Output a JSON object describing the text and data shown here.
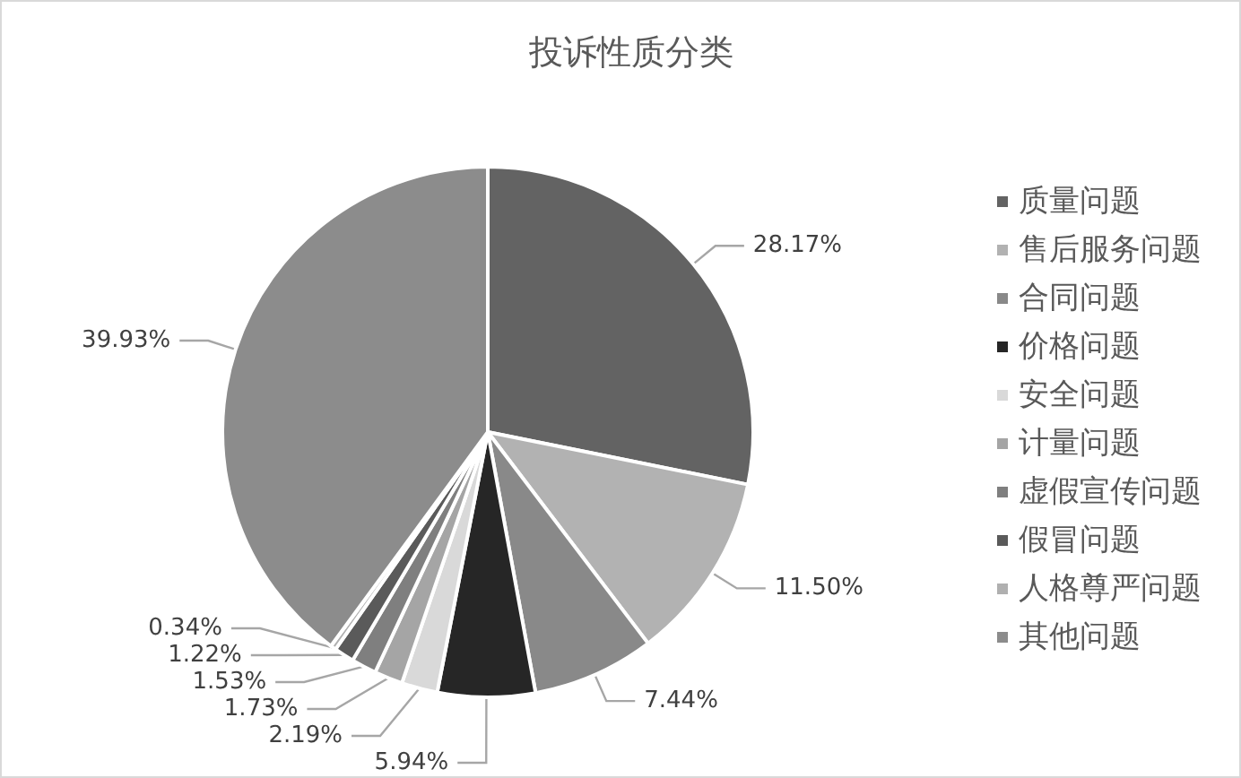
{
  "chart_data": {
    "type": "pie",
    "title": "投诉性质分类",
    "categories": [
      "质量问题",
      "售后服务问题",
      "合同问题",
      "价格问题",
      "安全问题",
      "计量问题",
      "虚假宣传问题",
      "假冒问题",
      "人格尊严问题",
      "其他问题"
    ],
    "values": [
      28.17,
      11.5,
      7.44,
      5.94,
      2.19,
      1.73,
      1.53,
      1.22,
      0.34,
      39.93
    ],
    "value_labels": [
      "28.17%",
      "11.50%",
      "7.44%",
      "5.94%",
      "2.19%",
      "1.73%",
      "1.53%",
      "1.22%",
      "0.34%",
      "39.93%"
    ],
    "colors": [
      "#636363",
      "#b2b2b2",
      "#898989",
      "#262626",
      "#d9d9d9",
      "#a5a5a5",
      "#7f7f7f",
      "#5a5a5a",
      "#b0b0b0",
      "#8c8c8c"
    ],
    "legend": "right"
  }
}
